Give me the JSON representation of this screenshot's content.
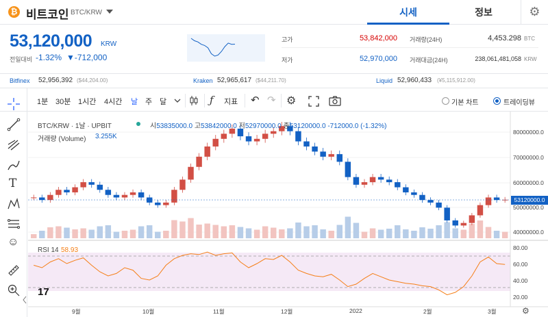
{
  "header": {
    "coin_icon": "₿",
    "coin_name": "비트코인",
    "coin_pair": "BTC/KRW",
    "tabs": [
      "시세",
      "정보"
    ],
    "gear_icon": "⚙"
  },
  "price": {
    "value": "53,120,000",
    "unit": "KRW",
    "change_label": "전일대비",
    "change_pct": "-1.32%",
    "change_amt": "▼-712,000"
  },
  "stats": {
    "high_label": "고가",
    "high_value": "53,842,000",
    "low_label": "저가",
    "low_value": "52,970,000",
    "vol_label": "거래량(24H)",
    "vol_value": "4,453.298",
    "vol_unit": "BTC",
    "amt_label": "거래대금(24H)",
    "amt_value": "238,061,481,058",
    "amt_unit": "KRW",
    "high_color": "#d60000",
    "low_color": "#1261c4"
  },
  "exchanges": [
    {
      "name": "Bitfinex",
      "price": "52,956,392",
      "usd": "($44,204.00)"
    },
    {
      "name": "Kraken",
      "price": "52,965,617",
      "usd": "($44,211.70)"
    },
    {
      "name": "Liquid",
      "price": "52,960,433",
      "usd": "(¥5,115,912.00)"
    }
  ],
  "toolbar": {
    "intervals": [
      "1분",
      "30분",
      "1시간",
      "4시간",
      "날",
      "주",
      "달"
    ],
    "active_interval": "날",
    "indicator_label": "지표",
    "chart_type_basic": "기본 차트",
    "chart_type_tv": "트레이딩뷰"
  },
  "chart": {
    "symbol": "BTC/KRW · 1날 · UPBIT",
    "ohlc": {
      "o_label": "시",
      "o": "53835000.0",
      "h_label": "고",
      "h": "53842000.0",
      "l_label": "저",
      "l": "52970000.0",
      "c_label": "종",
      "c": "53120000.0",
      "chg": "-712000.0 (-1.32%)"
    },
    "volume_label": "거래량 (Volume)",
    "volume_value": "3.255K",
    "rsi_label": "RSI 14",
    "rsi_value": "58.93",
    "price_tag": "53120000.0",
    "tv_logo": "17",
    "y_ticks": [
      "80000000.0",
      "70000000.0",
      "60000000.0",
      "50000000.0",
      "40000000.0"
    ],
    "rsi_ticks": [
      "80.00",
      "60.00",
      "40.00",
      "20.00"
    ],
    "x_ticks": [
      "9월",
      "10월",
      "11월",
      "12월",
      "2022",
      "2월",
      "3월"
    ]
  },
  "chart_data": {
    "type": "candlestick",
    "unit": "KRW",
    "ylim": [
      38000000,
      85000000
    ],
    "closes": [
      54000000,
      53000000,
      55000000,
      57000000,
      56000000,
      58000000,
      60000000,
      59000000,
      57000000,
      55000000,
      54000000,
      55000000,
      56000000,
      54000000,
      52000000,
      51000000,
      52000000,
      57000000,
      61000000,
      66000000,
      70000000,
      74000000,
      77000000,
      79000000,
      81000000,
      78000000,
      76000000,
      77000000,
      79000000,
      80000000,
      82000000,
      80000000,
      76000000,
      74000000,
      72000000,
      70000000,
      71000000,
      68000000,
      62000000,
      59000000,
      60000000,
      62000000,
      61000000,
      60000000,
      58000000,
      56000000,
      55000000,
      53000000,
      52000000,
      50000000,
      45000000,
      43000000,
      44000000,
      47000000,
      51000000,
      54000000,
      53000000,
      53120000
    ],
    "rsi": [
      58,
      55,
      62,
      66,
      60,
      64,
      67,
      58,
      50,
      45,
      48,
      55,
      52,
      42,
      40,
      45,
      58,
      66,
      70,
      72,
      71,
      74,
      70,
      72,
      73,
      62,
      55,
      60,
      66,
      65,
      70,
      62,
      52,
      48,
      45,
      44,
      47,
      40,
      32,
      35,
      42,
      48,
      44,
      40,
      38,
      36,
      35,
      33,
      32,
      28,
      22,
      25,
      32,
      45,
      62,
      68,
      60,
      58.93
    ]
  }
}
